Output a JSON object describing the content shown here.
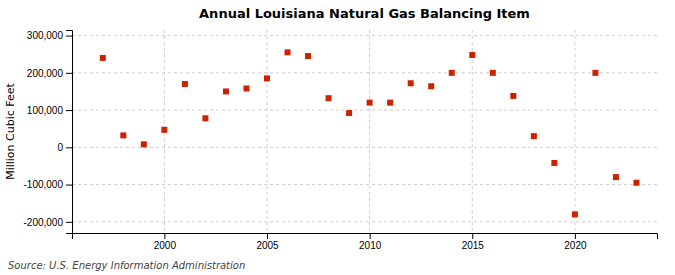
{
  "chart_data": {
    "type": "scatter",
    "title": "Annual Louisiana Natural Gas Balancing Item",
    "ylabel": "Million Cubic Feet",
    "source": "Source: U.S. Energy Information Administration",
    "x": [
      1997,
      1998,
      1999,
      2000,
      2001,
      2002,
      2003,
      2004,
      2005,
      2006,
      2007,
      2008,
      2009,
      2010,
      2011,
      2012,
      2013,
      2014,
      2015,
      2016,
      2017,
      2018,
      2019,
      2020,
      2021,
      2022,
      2023
    ],
    "values": [
      240000,
      32000,
      8000,
      47000,
      170000,
      78000,
      150000,
      158000,
      185000,
      255000,
      245000,
      132000,
      92000,
      120000,
      120000,
      172000,
      164000,
      200000,
      248000,
      200000,
      138000,
      30000,
      -42000,
      -180000,
      200000,
      -80000,
      -95000
    ],
    "color": "#cc2200",
    "marker": "square",
    "xlim": [
      1995.5,
      2024
    ],
    "xticks": [
      2000,
      2005,
      2010,
      2015,
      2020
    ],
    "ylim": [
      -230000,
      315000
    ],
    "yticks": [
      {
        "value": -200000,
        "label": "-200,000"
      },
      {
        "value": -100000,
        "label": "-100,000"
      },
      0,
      {
        "value": 100000,
        "label": "100,000"
      },
      {
        "value": 200000,
        "label": "200,000"
      },
      {
        "value": 300000,
        "label": "300,000"
      }
    ],
    "grid": true
  }
}
